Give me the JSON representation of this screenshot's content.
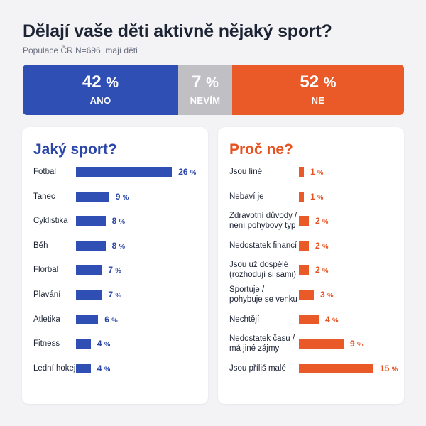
{
  "header": {
    "title": "Dělají vaše děti aktivně nějaký sport?",
    "subtitle": "Populace ČR N=696, mají děti"
  },
  "split": [
    {
      "value": "42",
      "unit": "%",
      "label": "ANO",
      "color": "#2f4fb5"
    },
    {
      "value": "7",
      "unit": "%",
      "label": "NEVÍM",
      "color": "#bfbfc4"
    },
    {
      "value": "52",
      "unit": "%",
      "label": "NE",
      "color": "#ea5a28"
    }
  ],
  "chart_data": [
    {
      "type": "bar",
      "title": "Jaký sport?",
      "orientation": "horizontal",
      "unit": "%",
      "categories": [
        "Fotbal",
        "Tanec",
        "Cyklistika",
        "Běh",
        "Florbal",
        "Plavání",
        "Atletika",
        "Fitness",
        "Lední hokej"
      ],
      "values": [
        26,
        9,
        8,
        8,
        7,
        7,
        6,
        4,
        4
      ],
      "color": "#2f4fb5"
    },
    {
      "type": "bar",
      "title": "Proč ne?",
      "orientation": "horizontal",
      "unit": "%",
      "categories": [
        "Jsou líné",
        "Nebaví je",
        "Zdravotní důvody / není pohybový typ",
        "Nedostatek financí",
        "Jsou už dospělé (rozhodují si sami)",
        "Sportuje / pohybuje se venku",
        "Nechtějí",
        "Nedostatek času / má jiné zájmy",
        "Jsou příliš malé"
      ],
      "label_lines": [
        [
          "Jsou líné"
        ],
        [
          "Nebaví je"
        ],
        [
          "Zdravotní důvody /",
          "není pohybový typ"
        ],
        [
          "Nedostatek financí"
        ],
        [
          "Jsou už dospělé",
          "(rozhodují si sami)"
        ],
        [
          "Sportuje /",
          "pohybuje se venku"
        ],
        [
          "Nechtějí"
        ],
        [
          "Nedostatek času /",
          "má jiné zájmy"
        ],
        [
          "Jsou příliš malé"
        ]
      ],
      "values": [
        1,
        1,
        2,
        2,
        2,
        3,
        4,
        9,
        15
      ],
      "color": "#ea5a28"
    }
  ]
}
